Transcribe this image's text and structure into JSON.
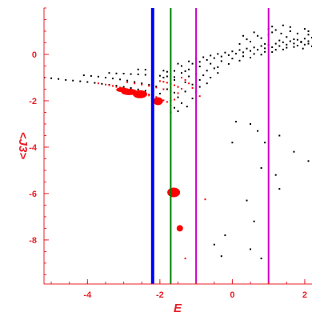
{
  "chart_data": {
    "type": "scatter",
    "title": "",
    "xlabel": "E",
    "ylabel": "<J3>",
    "xlim": [
      -5.2,
      2.2
    ],
    "ylim": [
      -9.9,
      2.0
    ],
    "x_ticks": [
      -4,
      -2,
      0,
      2
    ],
    "y_ticks": [
      0,
      -2,
      -4,
      -6,
      -8
    ],
    "x_tick_labels": [
      "-4",
      "-2",
      "0",
      "2"
    ],
    "y_tick_labels": [
      "0",
      "-2",
      "-4",
      "-6",
      "-8"
    ],
    "grid": false,
    "legend": "none",
    "axis_color": "#e8202a",
    "vertical_lines": [
      {
        "x": -2.2,
        "color": "#0000ff",
        "width": 4
      },
      {
        "x": -1.7,
        "color": "#008000",
        "width": 2
      },
      {
        "x": -1.0,
        "color": "#cc00cc",
        "width": 2
      },
      {
        "x": 1.0,
        "color": "#cc00cc",
        "width": 2
      }
    ],
    "series": [
      {
        "color": "#000000",
        "points": [
          [
            -5.2,
            -1.0
          ],
          [
            -5.0,
            -1.03
          ],
          [
            -4.8,
            -1.06
          ],
          [
            -4.6,
            -1.1
          ],
          [
            -4.4,
            -1.13
          ],
          [
            -4.2,
            -1.16
          ],
          [
            -4.0,
            -1.19
          ],
          [
            -3.8,
            -1.23
          ],
          [
            -3.6,
            -1.27
          ],
          [
            -3.4,
            -1.31
          ],
          [
            -3.2,
            -1.35
          ],
          [
            -3.0,
            -1.4
          ],
          [
            -2.8,
            -1.45
          ],
          [
            -2.6,
            -1.51
          ],
          [
            -2.4,
            -1.57
          ],
          [
            -2.2,
            -1.63
          ],
          [
            -2.0,
            -1.69
          ],
          [
            -4.1,
            -0.9
          ],
          [
            -3.9,
            -0.93
          ],
          [
            -3.7,
            -0.96
          ],
          [
            -3.5,
            -1.0
          ],
          [
            -3.3,
            -1.04
          ],
          [
            -3.1,
            -1.08
          ],
          [
            -2.9,
            -1.13
          ],
          [
            -2.7,
            -1.19
          ],
          [
            -2.5,
            -1.25
          ],
          [
            -2.3,
            -1.31
          ],
          [
            -2.1,
            -1.38
          ],
          [
            -3.4,
            -0.8
          ],
          [
            -3.2,
            -0.82
          ],
          [
            -3.0,
            -0.83
          ],
          [
            -2.8,
            -0.85
          ],
          [
            -2.6,
            -0.86
          ],
          [
            -2.4,
            -0.88
          ],
          [
            -2.2,
            -0.9
          ],
          [
            -2.0,
            -0.92
          ],
          [
            -1.8,
            -0.95
          ],
          [
            -1.6,
            -0.98
          ],
          [
            -1.4,
            -1.0
          ],
          [
            -2.6,
            -0.65
          ],
          [
            -2.4,
            -0.66
          ],
          [
            -2.2,
            -0.68
          ],
          [
            -1.9,
            -0.7
          ],
          [
            -1.6,
            -0.71
          ],
          [
            -1.3,
            -0.72
          ],
          [
            -1.5,
            -0.4
          ],
          [
            -1.2,
            -0.3
          ],
          [
            -1.0,
            -0.2
          ],
          [
            -0.8,
            -0.12
          ],
          [
            -0.6,
            -0.05
          ],
          [
            -0.4,
            0.02
          ],
          [
            -0.2,
            0.08
          ],
          [
            0.0,
            0.13
          ],
          [
            0.2,
            0.19
          ],
          [
            0.4,
            0.25
          ],
          [
            0.6,
            0.3
          ],
          [
            0.8,
            0.36
          ],
          [
            1.0,
            0.41
          ],
          [
            1.2,
            0.46
          ],
          [
            1.4,
            0.52
          ],
          [
            1.6,
            0.57
          ],
          [
            1.8,
            0.63
          ],
          [
            2.0,
            0.68
          ],
          [
            2.2,
            0.72
          ],
          [
            -1.4,
            -0.5
          ],
          [
            -1.1,
            -0.4
          ],
          [
            -0.9,
            -0.32
          ],
          [
            -0.7,
            -0.24
          ],
          [
            -0.5,
            -0.16
          ],
          [
            -0.3,
            -0.09
          ],
          [
            -0.1,
            -0.03
          ],
          [
            0.1,
            0.03
          ],
          [
            0.3,
            0.09
          ],
          [
            0.5,
            0.15
          ],
          [
            0.7,
            0.2
          ],
          [
            0.9,
            0.26
          ],
          [
            1.1,
            0.31
          ],
          [
            1.3,
            0.36
          ],
          [
            1.5,
            0.42
          ],
          [
            1.7,
            0.47
          ],
          [
            1.9,
            0.52
          ],
          [
            2.1,
            0.57
          ],
          [
            -1.2,
            -0.65
          ],
          [
            -0.9,
            -0.52
          ],
          [
            -0.6,
            -0.4
          ],
          [
            -0.3,
            -0.29
          ],
          [
            0.0,
            -0.18
          ],
          [
            0.3,
            -0.08
          ],
          [
            0.6,
            0.02
          ],
          [
            0.9,
            0.11
          ],
          [
            1.2,
            0.2
          ],
          [
            1.5,
            0.29
          ],
          [
            1.8,
            0.38
          ],
          [
            2.1,
            0.46
          ],
          [
            -1.0,
            -0.85
          ],
          [
            -0.7,
            -0.7
          ],
          [
            -0.4,
            -0.55
          ],
          [
            -0.1,
            -0.41
          ],
          [
            0.2,
            -0.27
          ],
          [
            0.5,
            -0.14
          ],
          [
            0.8,
            -0.01
          ],
          [
            1.1,
            0.1
          ],
          [
            1.4,
            0.21
          ],
          [
            1.7,
            0.32
          ],
          [
            2.0,
            0.42
          ],
          [
            0.3,
            0.8
          ],
          [
            0.6,
            0.95
          ],
          [
            0.8,
            0.7
          ],
          [
            1.0,
            0.85
          ],
          [
            1.2,
            1.05
          ],
          [
            1.3,
            0.6
          ],
          [
            1.5,
            0.75
          ],
          [
            1.6,
            1.0
          ],
          [
            1.8,
            0.9
          ],
          [
            1.9,
            0.55
          ],
          [
            2.0,
            1.1
          ],
          [
            2.1,
            0.85
          ],
          [
            1.4,
            1.25
          ],
          [
            1.1,
            1.2
          ],
          [
            0.9,
            0.45
          ],
          [
            1.7,
            0.65
          ],
          [
            2.2,
            0.35
          ],
          [
            0.5,
            0.55
          ],
          [
            0.2,
            0.45
          ],
          [
            1.95,
            0.25
          ],
          [
            1.1,
            0.95
          ],
          [
            1.6,
            1.18
          ],
          [
            1.0,
            1.1
          ],
          [
            0.4,
            0.65
          ],
          [
            2.1,
            1.0
          ],
          [
            0.7,
            0.8
          ],
          [
            1.35,
            0.9
          ],
          [
            -1.8,
            -0.75
          ],
          [
            -1.9,
            -1.0
          ],
          [
            -1.6,
            -1.1
          ],
          [
            -1.5,
            -1.4
          ],
          [
            -1.3,
            -1.2
          ],
          [
            -1.4,
            -0.8
          ],
          [
            -1.2,
            -0.95
          ],
          [
            -1.1,
            -1.3
          ],
          [
            -0.9,
            -1.1
          ],
          [
            -1.6,
            -1.65
          ],
          [
            -1.8,
            -1.5
          ],
          [
            -1.7,
            -2.0
          ],
          [
            -1.5,
            -1.85
          ],
          [
            -1.3,
            -1.6
          ],
          [
            -1.0,
            -1.6
          ],
          [
            -1.1,
            -1.9
          ],
          [
            -1.4,
            -2.1
          ],
          [
            -1.6,
            -2.3
          ],
          [
            -1.7,
            -2.5
          ],
          [
            -1.5,
            -2.45
          ],
          [
            -0.8,
            -0.9
          ],
          [
            -0.5,
            -0.6
          ],
          [
            -0.6,
            -1.0
          ],
          [
            -0.9,
            -1.4
          ],
          [
            -0.7,
            -1.25
          ],
          [
            -0.4,
            -0.8
          ],
          [
            -1.25,
            -2.25
          ],
          [
            0.1,
            -2.9
          ],
          [
            0.0,
            -3.8
          ],
          [
            0.5,
            -3.0
          ],
          [
            0.7,
            -3.3
          ],
          [
            1.3,
            -3.5
          ],
          [
            0.9,
            -3.8
          ],
          [
            1.7,
            -4.2
          ],
          [
            2.1,
            -4.6
          ],
          [
            0.8,
            -4.9
          ],
          [
            1.2,
            -5.2
          ],
          [
            0.4,
            -6.3
          ],
          [
            1.3,
            -5.8
          ],
          [
            0.6,
            -7.2
          ],
          [
            0.5,
            -8.4
          ],
          [
            -0.2,
            -7.8
          ],
          [
            0.8,
            -8.8
          ],
          [
            -0.5,
            -8.2
          ],
          [
            -0.3,
            -8.7
          ]
        ]
      },
      {
        "color": "#ff0000",
        "points": [
          [
            -3.5,
            -1.3
          ],
          [
            -3.4,
            -1.33
          ],
          [
            -3.3,
            -1.36
          ],
          [
            -3.2,
            -1.4
          ],
          [
            -3.1,
            -1.43
          ],
          [
            -3.0,
            -1.46
          ],
          [
            -2.9,
            -1.5
          ],
          [
            -2.8,
            -1.53
          ],
          [
            -2.7,
            -1.57
          ],
          [
            -2.6,
            -1.61
          ],
          [
            -2.5,
            -1.65
          ],
          [
            -2.4,
            -1.69
          ],
          [
            -2.3,
            -1.73
          ],
          [
            -2.2,
            -1.78
          ],
          [
            -2.1,
            -1.84
          ],
          [
            -2.0,
            -1.9
          ],
          [
            -1.9,
            -1.98
          ],
          [
            -1.8,
            -2.05
          ],
          [
            -3.0,
            -1.48
          ],
          [
            -2.9,
            -1.52
          ],
          [
            -2.8,
            -1.56
          ],
          [
            -2.7,
            -1.6
          ],
          [
            -2.6,
            -1.64
          ],
          [
            -2.5,
            -1.68
          ],
          [
            -2.4,
            -1.72
          ],
          [
            -2.3,
            -1.77
          ],
          [
            -2.9,
            -1.2
          ],
          [
            -2.7,
            -1.25
          ],
          [
            -2.5,
            -1.3
          ],
          [
            -2.3,
            -1.36
          ],
          [
            -2.1,
            -1.43
          ],
          [
            -1.9,
            -1.5
          ],
          [
            -1.7,
            -1.58
          ],
          [
            -1.5,
            -1.67
          ],
          [
            -2.0,
            -1.15
          ],
          [
            -1.9,
            -1.18
          ],
          [
            -1.8,
            -1.22
          ],
          [
            -1.7,
            -1.27
          ],
          [
            -1.6,
            -1.33
          ],
          [
            -1.5,
            -1.4
          ],
          [
            -1.4,
            -1.48
          ],
          [
            -1.4,
            -1.0
          ],
          [
            -1.3,
            -1.1
          ],
          [
            -1.2,
            -1.25
          ],
          [
            -1.1,
            -1.45
          ],
          [
            -1.0,
            -1.65
          ],
          [
            -0.9,
            -1.8
          ],
          [
            -1.6,
            -1.95
          ],
          [
            -1.7,
            -2.2
          ],
          [
            -1.65,
            -5.95
          ],
          [
            -1.7,
            -5.9
          ],
          [
            -1.6,
            -6.0
          ],
          [
            -1.75,
            -6.0
          ],
          [
            -1.55,
            -5.95
          ],
          [
            -1.45,
            -7.5
          ],
          [
            -1.3,
            -8.8
          ],
          [
            -0.75,
            -6.25
          ],
          [
            -3.7,
            -1.25
          ]
        ],
        "blobs": [
          [
            -1.62,
            -5.95,
            8,
            6
          ],
          [
            -1.45,
            -7.5,
            4,
            4
          ],
          [
            -2.85,
            -1.62,
            10,
            4
          ],
          [
            -2.55,
            -1.72,
            9,
            5
          ],
          [
            -2.05,
            -2.02,
            6,
            5
          ],
          [
            -3.05,
            -1.52,
            7,
            3
          ]
        ]
      }
    ]
  }
}
